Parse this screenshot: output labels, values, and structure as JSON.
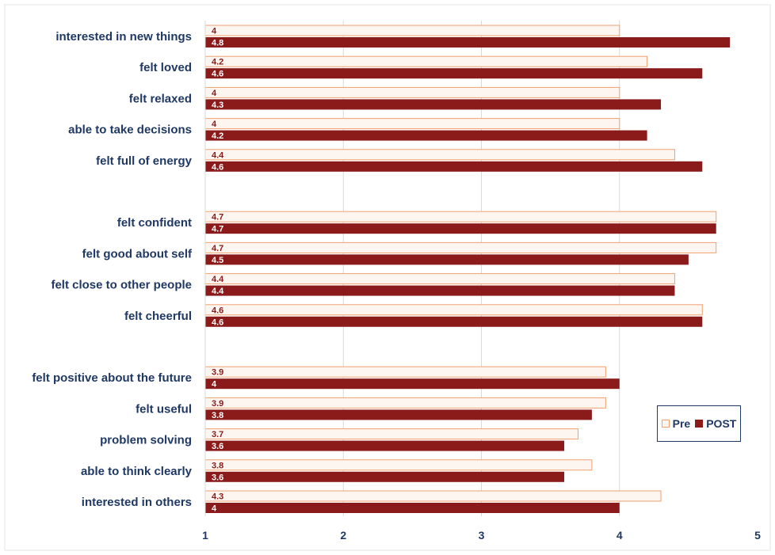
{
  "chart_data": {
    "type": "bar",
    "orientation": "horizontal",
    "title": "",
    "xlabel": "",
    "ylabel": "",
    "xlim": [
      1,
      5
    ],
    "x_ticks": [
      "1",
      "2",
      "3",
      "4",
      "5"
    ],
    "grid": true,
    "legend_position": "right",
    "groups": [
      [
        "interested in new things",
        "felt loved",
        "felt relaxed",
        "able to take decisions",
        "felt full of energy"
      ],
      [
        "felt confident",
        "felt good about self",
        "felt close to other people",
        "felt cheerful"
      ],
      [
        "felt positive about the future",
        "felt useful",
        "problem solving",
        "able to think clearly",
        "interested in others"
      ]
    ],
    "categories": [
      "interested in new things",
      "felt loved",
      "felt relaxed",
      "able to take decisions",
      "felt full of energy",
      "felt confident",
      "felt good about self",
      "felt close to other people",
      "felt cheerful",
      "felt positive about the future",
      "felt useful",
      "problem solving",
      "able to think clearly",
      "interested in others"
    ],
    "series": [
      {
        "name": "Pre",
        "color": "#fdf5ef",
        "edge_color": "#f0a070",
        "values": [
          4,
          4.2,
          4,
          4,
          4.4,
          4.7,
          4.7,
          4.4,
          4.6,
          3.9,
          3.9,
          3.7,
          3.8,
          4.3
        ],
        "labels": [
          "4",
          "4.2",
          "4",
          "4",
          "4.4",
          "4.7",
          "4.7",
          "4.4",
          "4.6",
          "3.9",
          "3.9",
          "3.7",
          "3.8",
          "4.3"
        ]
      },
      {
        "name": "POST",
        "color": "#8b1a1a",
        "values": [
          4.8,
          4.6,
          4.3,
          4.2,
          4.6,
          4.7,
          4.5,
          4.4,
          4.6,
          4,
          3.8,
          3.6,
          3.6,
          4
        ],
        "labels": [
          "4.8",
          "4.6",
          "4.3",
          "4.2",
          "4.6",
          "4.7",
          "4.5",
          "4.4",
          "4.6",
          "4",
          "3.8",
          "3.6",
          "3.6",
          "4"
        ]
      }
    ]
  },
  "colors": {
    "text": "#1f3864",
    "grid": "#d9d9d9",
    "plot_border": "#bfbfbf"
  }
}
